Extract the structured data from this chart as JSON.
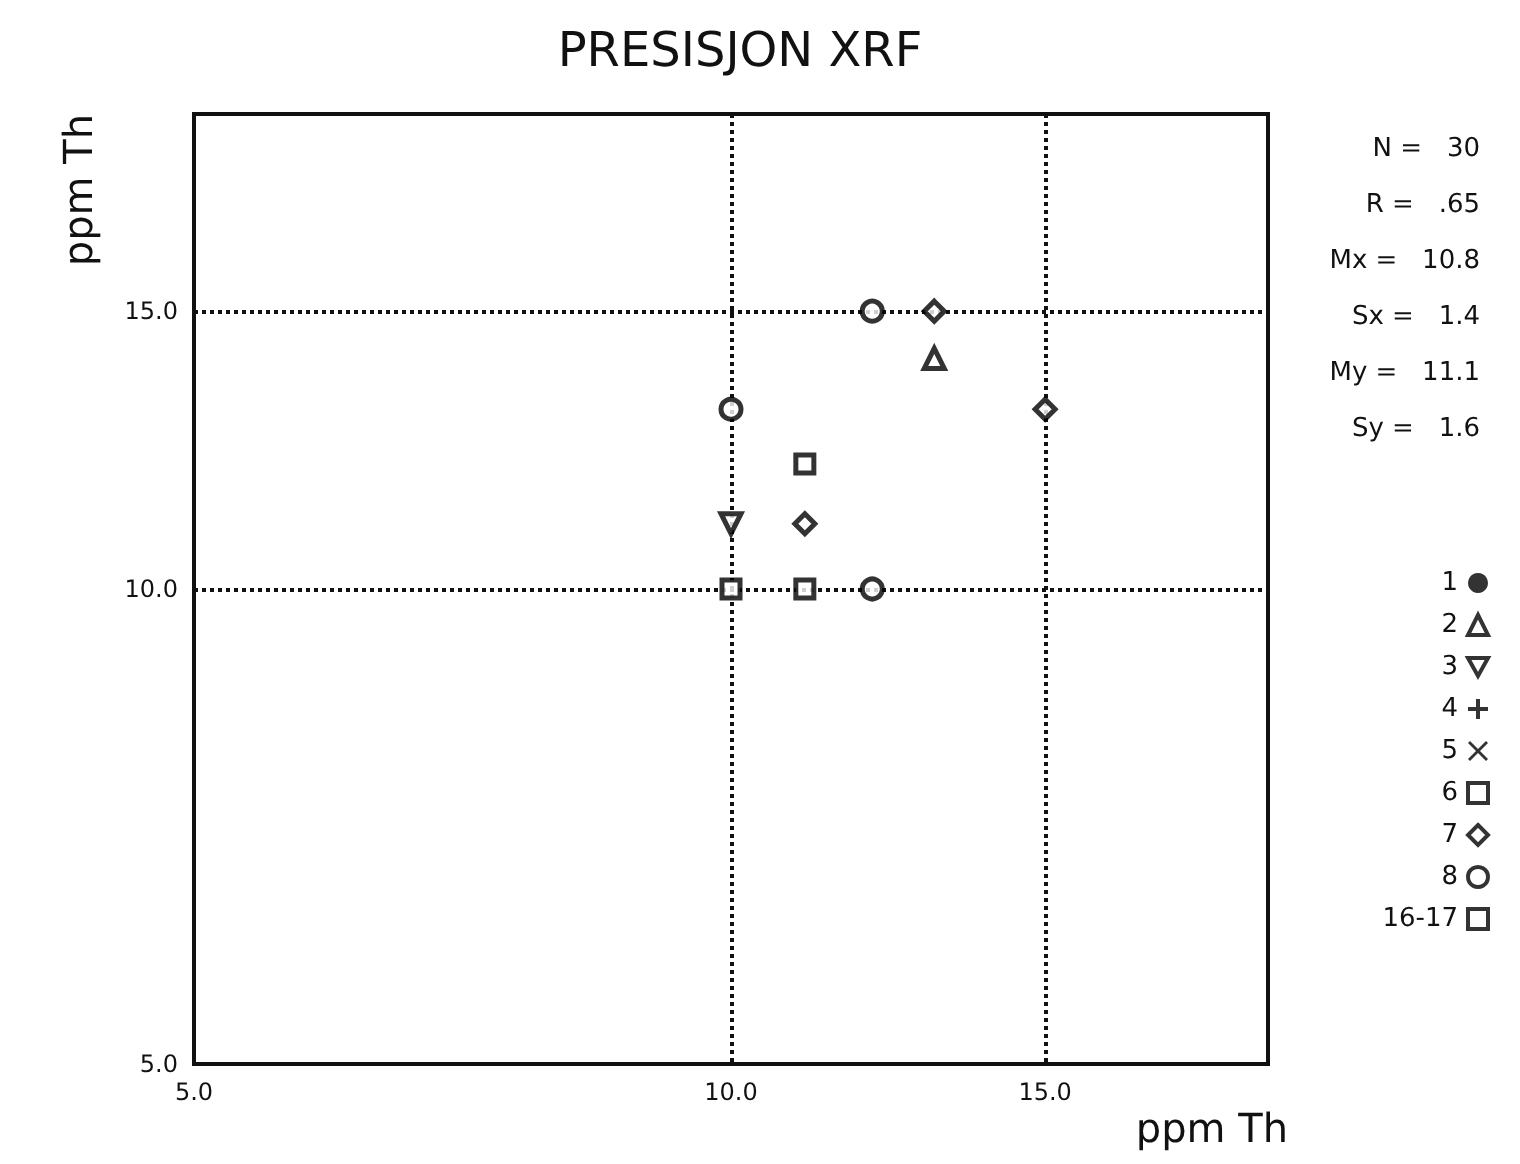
{
  "chart_data": {
    "type": "scatter",
    "title": "PRESISJON XRF",
    "xlabel": "ppm Th",
    "ylabel": "ppm Th",
    "log": "xy",
    "xlim": [
      5,
      20
    ],
    "ylim": [
      5,
      20
    ],
    "xticks": [
      {
        "value": 5,
        "label": "5.0"
      },
      {
        "value": 10,
        "label": "10.0"
      },
      {
        "value": 15,
        "label": "15.0"
      }
    ],
    "yticks": [
      {
        "value": 5,
        "label": "5.0"
      },
      {
        "value": 10,
        "label": "10.0"
      },
      {
        "value": 15,
        "label": "15.0"
      }
    ],
    "grid": true,
    "legend": "right",
    "annotations": [
      "N =   30",
      "R =   .65",
      "Mx =   10.8",
      "Sx =   1.4",
      "My =   11.1",
      "Sy =   1.6"
    ],
    "series": [
      {
        "name": "1",
        "color": "#000000",
        "marker": "dot"
      },
      {
        "name": "2",
        "color": "#000000",
        "marker": "triangle",
        "x": [
          13
        ],
        "values": [
          14
        ]
      },
      {
        "name": "3",
        "color": "#000000",
        "marker": "triangle-down",
        "x": [
          10
        ],
        "values": [
          11
        ]
      },
      {
        "name": "4",
        "color": "#000000",
        "marker": "plus"
      },
      {
        "name": "5",
        "color": "#000000",
        "marker": "cross"
      },
      {
        "name": "6",
        "color": "#000000",
        "marker": "square",
        "x": [
          11,
          11
        ],
        "values": [
          12,
          10
        ]
      },
      {
        "name": "7",
        "color": "#000000",
        "marker": "diamond",
        "x": [
          13,
          15,
          11
        ],
        "values": [
          15,
          13,
          11
        ]
      },
      {
        "name": "8",
        "color": "#000000",
        "marker": "circle",
        "x": [
          12,
          10,
          12
        ],
        "values": [
          15,
          13,
          10
        ]
      },
      {
        "name": "16-17",
        "color": "#000000",
        "marker": "square",
        "x": [
          10
        ],
        "values": [
          10
        ]
      }
    ]
  }
}
